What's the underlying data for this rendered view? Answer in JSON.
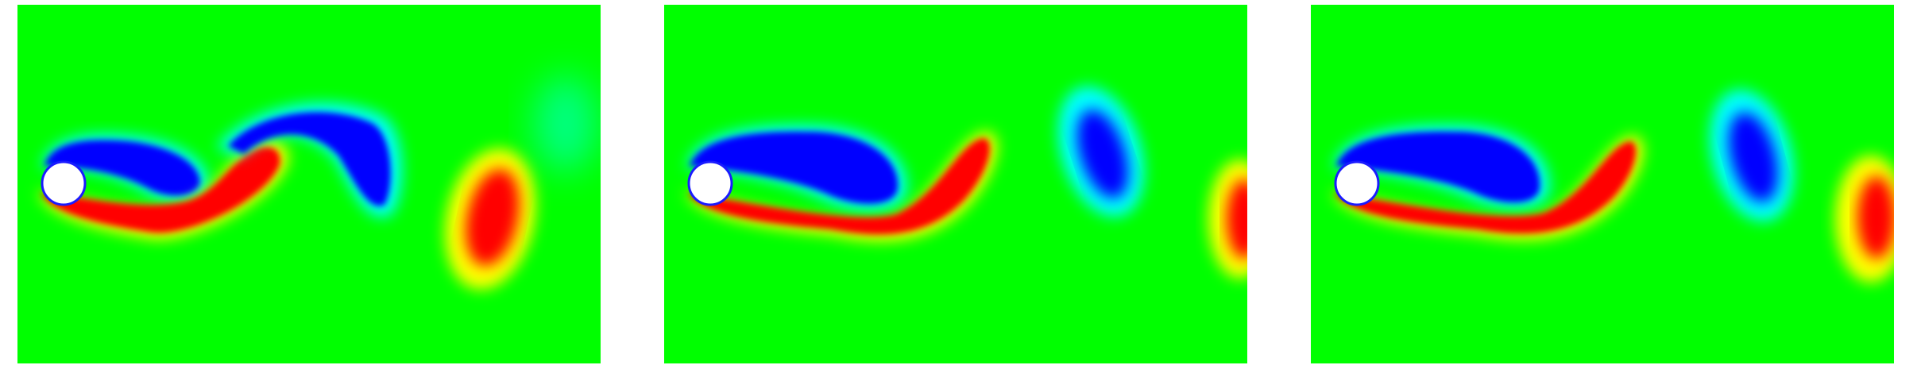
{
  "figure": {
    "panels": [
      {
        "id": "snapshot-1"
      },
      {
        "id": "snapshot-2"
      },
      {
        "id": "snapshot-3"
      }
    ],
    "colors": {
      "background": "#00ff00",
      "negative_vorticity": "#0000ff",
      "positive_vorticity": "#ff0000",
      "cyan_edge": "#00ffff",
      "yellow_edge": "#ffff00",
      "cylinder": "#ffffff"
    }
  }
}
